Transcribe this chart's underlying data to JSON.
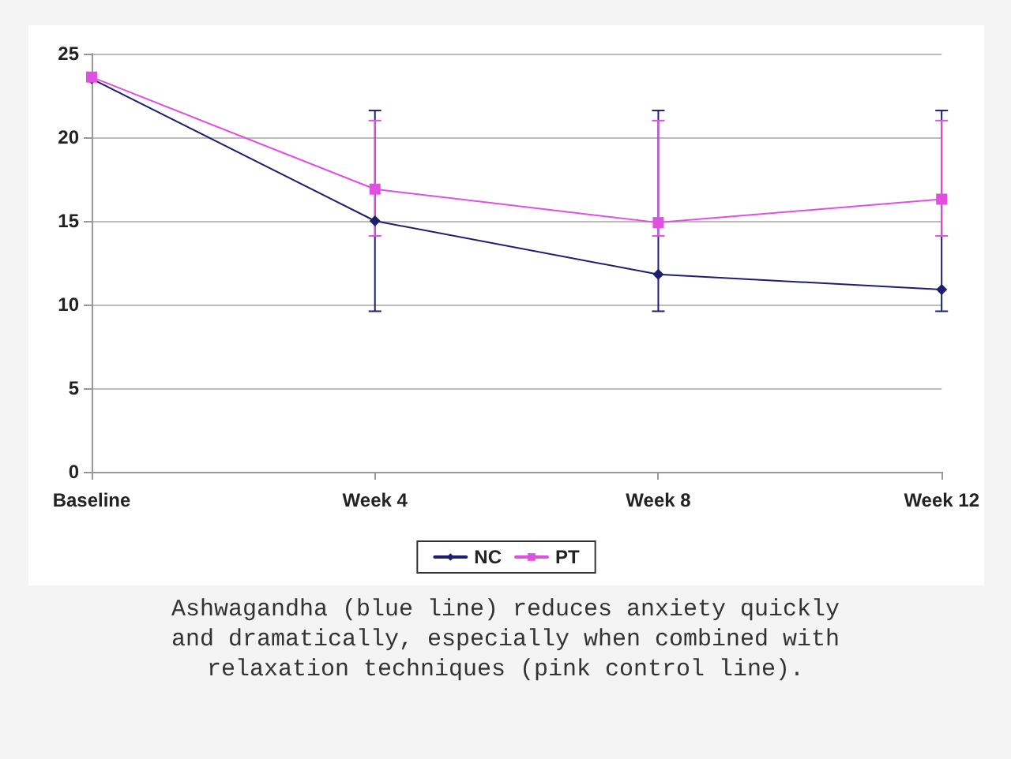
{
  "chart_data": {
    "type": "line",
    "categories": [
      "Baseline",
      "Week 4",
      "Week 8",
      "Week 12"
    ],
    "series": [
      {
        "name": "NC",
        "color": "#1c1f6e",
        "marker": "diamond",
        "values": [
          23.5,
          15,
          11.8,
          10.9
        ],
        "errors": [
          null,
          [
            9.6,
            21.6
          ],
          [
            9.6,
            21.6
          ],
          [
            9.6,
            21.6
          ]
        ]
      },
      {
        "name": "PT",
        "color": "#e050e0",
        "marker": "square",
        "values": [
          23.6,
          16.9,
          14.9,
          16.3
        ],
        "errors": [
          null,
          [
            14.1,
            21
          ],
          [
            14.1,
            21
          ],
          [
            14.1,
            21
          ]
        ]
      }
    ],
    "ylim": [
      0,
      25
    ],
    "yticks": [
      0,
      5,
      10,
      15,
      20,
      25
    ],
    "grid": "y",
    "legend": "bottom",
    "line_style": "solid",
    "annotations": [
      "Ashwagandha (blue line) reduces anxiety quickly and dramatically, especially when combined with relaxation techniques (pink control line)."
    ]
  }
}
